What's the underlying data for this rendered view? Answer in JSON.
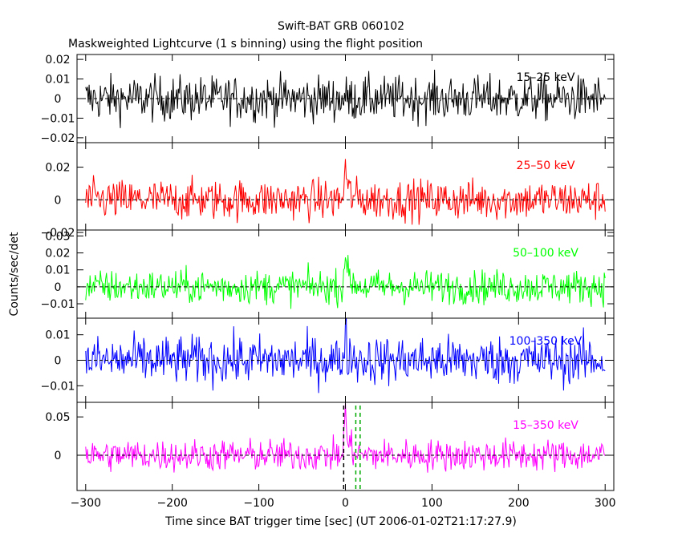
{
  "chart_data": {
    "type": "line",
    "title": "Swift-BAT GRB 060102",
    "subtitle": "Maskweighted Lightcurve (1 s binning) using the flight position",
    "xlabel": "Time since BAT trigger time [sec] (UT 2006-01-02T21:17:27.9)",
    "ylabel": "Counts/sec/det",
    "xlim": [
      -310,
      310
    ],
    "x_ticks": [
      -300,
      -200,
      -100,
      0,
      100,
      200,
      300
    ],
    "x_tick_labels": [
      "−300",
      "−200",
      "−100",
      "0",
      "100",
      "200",
      "300"
    ],
    "grid": false,
    "panels": [
      {
        "band": "15–25 keV",
        "color": "#000000",
        "ylim": [
          -0.0225,
          0.0225
        ],
        "y_ticks": [
          -0.02,
          -0.01,
          0,
          0.01,
          0.02
        ],
        "y_tick_labels": [
          "−0.02",
          "−0.01",
          "0",
          "0.01",
          "0.02"
        ],
        "baseline": 0,
        "noise_sigma": 0.0058,
        "burst_peak": 0,
        "burst_tail": 0
      },
      {
        "band": "25–50 keV",
        "color": "#ff0000",
        "ylim": [
          -0.0185,
          0.035
        ],
        "y_ticks": [
          -0.02,
          0,
          0.02
        ],
        "y_tick_labels": [
          "−0.02",
          "0",
          "0.02"
        ],
        "baseline": 0,
        "noise_sigma": 0.0062,
        "burst_peak": 0.022,
        "burst_tail": 0.007
      },
      {
        "band": "50–100 keV",
        "color": "#00ff00",
        "ylim": [
          -0.0185,
          0.0335
        ],
        "y_ticks": [
          -0.01,
          0,
          0.01,
          0.02,
          0.03
        ],
        "y_tick_labels": [
          "−0.01",
          "0",
          "0.01",
          "0.02",
          "0.03"
        ],
        "baseline": 0,
        "noise_sigma": 0.005,
        "burst_peak": 0.024,
        "burst_tail": 0.008
      },
      {
        "band": "100–350 keV",
        "color": "#0000ff",
        "ylim": [
          -0.0165,
          0.0165
        ],
        "y_ticks": [
          -0.01,
          0,
          0.01
        ],
        "y_tick_labels": [
          "−0.01",
          "0",
          "0.01"
        ],
        "baseline": 0,
        "noise_sigma": 0.0048,
        "burst_peak": 0.011,
        "burst_tail": 0.003
      },
      {
        "band": "15–350 keV",
        "color": "#ff00ff",
        "ylim": [
          -0.046,
          0.069
        ],
        "y_ticks": [
          0,
          0.05
        ],
        "y_tick_labels": [
          "0",
          "0.05"
        ],
        "baseline": 0,
        "noise_sigma": 0.0105,
        "burst_peak": 0.062,
        "burst_tail": 0.022
      }
    ],
    "markers": [
      {
        "x": -2,
        "color": "#000000",
        "style": "dashed"
      },
      {
        "x": 12,
        "color": "#00aa00",
        "style": "dashed"
      },
      {
        "x": 17,
        "color": "#00aa00",
        "style": "dashed"
      }
    ]
  }
}
